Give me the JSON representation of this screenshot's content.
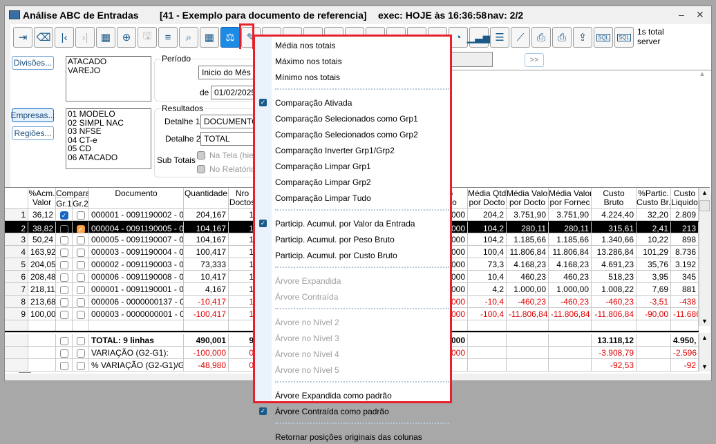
{
  "window": {
    "title": "Análise ABC de Entradas",
    "report": "[41 - Exemplo para documento de referencia]",
    "exec": "exec: HOJE às 16:36:58",
    "nav": "nav: 2/2",
    "minimize": "–",
    "close": "✕"
  },
  "toolbar": {
    "buttons": [
      {
        "icon": "exit-icon",
        "glyph": "⇥"
      },
      {
        "icon": "eraser-icon",
        "glyph": "⌫"
      },
      {
        "icon": "first-icon",
        "glyph": "|‹"
      },
      {
        "icon": "last-icon",
        "glyph": "›|",
        "disabled": true
      },
      {
        "icon": "table-icon",
        "glyph": "▦"
      },
      {
        "icon": "add-icon",
        "glyph": "⊕"
      },
      {
        "icon": "save-icon",
        "glyph": "🖫",
        "disabled": true
      },
      {
        "icon": "filter-icon",
        "glyph": "≡"
      },
      {
        "icon": "search-icon",
        "glyph": "⌕"
      },
      {
        "icon": "calendar-icon",
        "glyph": "▦"
      },
      {
        "icon": "balance-icon",
        "glyph": "⚖",
        "active": true
      },
      {
        "icon": "pencil-icon",
        "glyph": "✎"
      },
      {
        "icon": "tool-icon",
        "glyph": "▪"
      },
      {
        "icon": "tool-icon",
        "glyph": "▪"
      },
      {
        "icon": "tool-icon",
        "glyph": "▪"
      },
      {
        "icon": "tool-icon",
        "glyph": "▪"
      },
      {
        "icon": "tool-icon",
        "glyph": "▪"
      },
      {
        "icon": "tool-icon",
        "glyph": "▪"
      },
      {
        "icon": "tool-icon",
        "glyph": "▪"
      },
      {
        "icon": "tool-icon",
        "glyph": "▪"
      },
      {
        "icon": "tool-icon",
        "glyph": "▪"
      },
      {
        "icon": "pie-chart-icon",
        "glyph": "◔"
      },
      {
        "icon": "bar-chart-icon",
        "glyph": "▁▃▅"
      },
      {
        "icon": "horizontal-bar-icon",
        "glyph": "☰"
      },
      {
        "icon": "line-chart-icon",
        "glyph": "⟋"
      },
      {
        "icon": "print-icon",
        "glyph": "⎙"
      },
      {
        "icon": "print-setup-icon",
        "glyph": "⎙"
      },
      {
        "icon": "export-icon",
        "glyph": "⇪"
      },
      {
        "icon": "sql-icon",
        "glyph": "SQL"
      },
      {
        "icon": "sql-icon",
        "glyph": "SQL"
      }
    ],
    "timing": "1s total\nserver"
  },
  "filters": {
    "divisoes_label": "Divisões...",
    "divisoes": [
      "ATACADO",
      "VAREJO"
    ],
    "empresas_label": "Empresas...",
    "regioes_label": "Regiões...",
    "empresas": [
      "01 MODELO",
      "02 SIMPL NAC",
      "03 NFSE",
      "04 CT-e",
      "05 CD",
      "06 ATACADO"
    ],
    "periodo_label": "Período",
    "periodo_value": "Inicio do Mês at",
    "de_label": "de",
    "de_value": "01/02/2025",
    "resultados_label": "Resultados",
    "detalhe1_label": "Detalhe 1",
    "detalhe1_value": "DOCUMENTO",
    "detalhe2_label": "Detalhe 2",
    "detalhe2_value": "TOTAL",
    "subtotais_label": "Sub Totais",
    "na_tela": "Na Tela (hiera",
    "no_relatorio": "No Relatório",
    "next": ">>"
  },
  "grid": {
    "headers": {
      "acm": "%Acm.\nValor",
      "comparar": "Comparar",
      "gr1": "Gr.1",
      "gr2": "Gr.2",
      "documento": "Documento",
      "quantidade": "Quantidade",
      "nro": "Nro\nDoctos",
      "peso": "Peso\nLiquido",
      "media_qtd": "Média Qtd\npor Docto",
      "media_valor": "Média Valor\npor Docto",
      "media_fornec": "Média Valor\npor Fornec",
      "custo_bruto": "Custo\nBruto",
      "partic": "%Partic.\nCusto Br.",
      "custo_liq": "Custo\nLiquido"
    },
    "rows": [
      {
        "n": "1",
        "acm": "36,12",
        "g1": true,
        "g2": false,
        "doc": "000001 - 0091190002 - 001",
        "qtd": "204,167",
        "nro": "1",
        "peso": "000",
        "mqtd": "204,2",
        "mval": "3.751,90",
        "mforn": "3.751,90",
        "cb": "4.224,40",
        "part": "32,20",
        "cl": "2.809"
      },
      {
        "n": "2",
        "acm": "38,82",
        "g1": false,
        "g2": true,
        "doc": "000004 - 0091190005 - 001",
        "qtd": "104,167",
        "nro": "1",
        "peso": "000",
        "mqtd": "104,2",
        "mval": "280,11",
        "mforn": "280,11",
        "cb": "315,61",
        "part": "2,41",
        "cl": "213",
        "selected": true
      },
      {
        "n": "3",
        "acm": "50,24",
        "doc": "000005 - 0091190007 - 001",
        "qtd": "104,167",
        "nro": "1",
        "peso": "000",
        "mqtd": "104,2",
        "mval": "1.185,66",
        "mforn": "1.185,66",
        "cb": "1.340,66",
        "part": "10,22",
        "cl": "898"
      },
      {
        "n": "4",
        "acm": "163,92",
        "doc": "000003 - 0091190004 - 001",
        "qtd": "100,417",
        "nro": "1",
        "peso": "000",
        "mqtd": "100,4",
        "mval": "11.806,84",
        "mforn": "11.806,84",
        "cb": "13.286,84",
        "part": "101,29",
        "cl": "8.736"
      },
      {
        "n": "5",
        "acm": "204,05",
        "doc": "000002 - 0091190003 - 001",
        "qtd": "73,333",
        "nro": "1",
        "peso": "000",
        "mqtd": "73,3",
        "mval": "4.168,23",
        "mforn": "4.168,23",
        "cb": "4.691,23",
        "part": "35,76",
        "cl": "3.192"
      },
      {
        "n": "6",
        "acm": "208,48",
        "doc": "000006 - 0091190008 - 001",
        "qtd": "10,417",
        "nro": "1",
        "peso": "000",
        "mqtd": "10,4",
        "mval": "460,23",
        "mforn": "460,23",
        "cb": "518,23",
        "part": "3,95",
        "cl": "345"
      },
      {
        "n": "7",
        "acm": "218,11",
        "doc": "000001 - 0091190001 - 001",
        "qtd": "4,167",
        "nro": "1",
        "peso": "000",
        "mqtd": "4,2",
        "mval": "1.000,00",
        "mforn": "1.000,00",
        "cb": "1.008,22",
        "part": "7,69",
        "cl": "881"
      },
      {
        "n": "8",
        "acm": "213,68",
        "doc": "000006 - 0000000137 - 001",
        "qtd": "-10,417",
        "nro": "1",
        "peso": "000",
        "mqtd": "-10,4",
        "mval": "-460,23",
        "mforn": "-460,23",
        "cb": "-460,23",
        "part": "-3,51",
        "cl": "-438",
        "neg": true
      },
      {
        "n": "9",
        "acm": "100,00",
        "doc": "000003 - 0000000001 - 003",
        "qtd": "-100,417",
        "nro": "1",
        "peso": "000",
        "mqtd": "-100,4",
        "mval": "-11.806,84",
        "mforn": "-11.806,84",
        "cb": "-11.806,84",
        "part": "-90,00",
        "cl": "-11.686",
        "neg": true
      }
    ],
    "totals": [
      {
        "doc": "TOTAL: 9 linhas",
        "qtd": "490,001",
        "nro": "9",
        "peso": "000",
        "cb": "13.118,12",
        "cl": "4.950,",
        "bold": true
      },
      {
        "doc": "VARIAÇÃO (G2-G1):",
        "qtd": "-100,000",
        "nro": "0",
        "peso": "000",
        "cb": "-3.908,79",
        "cl": "-2.596",
        "neg": true
      },
      {
        "doc": "% VARIAÇÃO (G2-G1)/G1:",
        "qtd": "-48,980",
        "nro": "0",
        "peso": "",
        "cb": "-92,53",
        "cl": "-92",
        "neg": true
      }
    ]
  },
  "menu": {
    "items": [
      {
        "label": "Média nos totais"
      },
      {
        "label": "Máximo nos totais"
      },
      {
        "label": "Mínimo nos totais"
      },
      {
        "sep": true
      },
      {
        "label": "Comparação Ativada",
        "checked": true
      },
      {
        "label": "Comparação Selecionados como Grp1"
      },
      {
        "label": "Comparação Selecionados como Grp2"
      },
      {
        "label": "Comparação Inverter Grp1/Grp2"
      },
      {
        "label": "Comparação Limpar Grp1"
      },
      {
        "label": "Comparação Limpar Grp2"
      },
      {
        "label": "Comparação Limpar Tudo"
      },
      {
        "sep": true
      },
      {
        "label": "Particip. Acumul. por Valor da Entrada",
        "checked": true
      },
      {
        "label": "Particip. Acumul. por Peso Bruto"
      },
      {
        "label": "Particip. Acumul. por Custo Bruto"
      },
      {
        "sep": true
      },
      {
        "label": "Árvore Expandida",
        "disabled": true
      },
      {
        "label": "Árvore Contraída",
        "disabled": true
      },
      {
        "sep": true
      },
      {
        "label": "Árvore no Nível 2",
        "disabled": true
      },
      {
        "label": "Árvore no Nível 3",
        "disabled": true
      },
      {
        "label": "Árvore no Nível 4",
        "disabled": true
      },
      {
        "label": "Árvore no Nível 5",
        "disabled": true
      },
      {
        "sep": true
      },
      {
        "label": "Árvore Expandida como padrão"
      },
      {
        "label": "Árvore Contraída como padrão",
        "checked": true
      },
      {
        "sep": true
      },
      {
        "label": "Retornar posições originais das colunas"
      }
    ]
  },
  "colors": {
    "accent": "#1c8be6",
    "highlight": "#e8202a",
    "negative": "#e00000",
    "group2": "#f7a34b"
  }
}
